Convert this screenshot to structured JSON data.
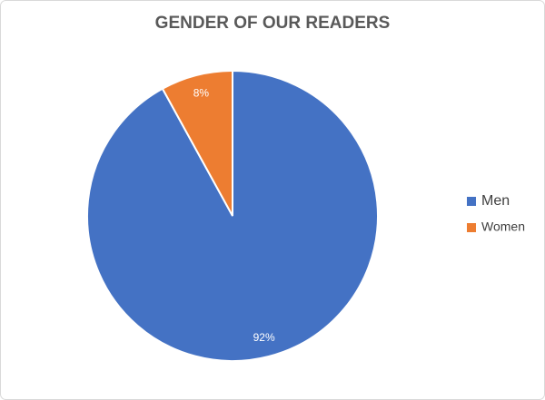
{
  "chart_data": {
    "type": "pie",
    "title": "GENDER OF OUR READERS",
    "categories": [
      "Men",
      "Women"
    ],
    "values": [
      92,
      8
    ],
    "value_labels": [
      "92%",
      "8%"
    ],
    "colors": [
      "#4472c4",
      "#ed7d31"
    ],
    "legend": "right"
  }
}
